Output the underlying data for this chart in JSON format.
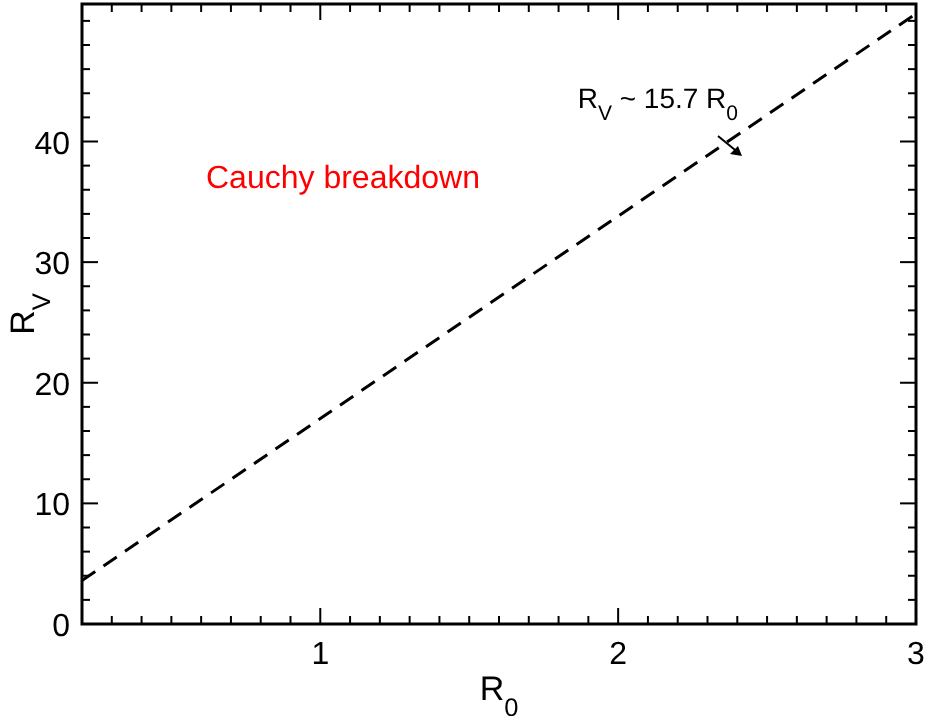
{
  "chart_data": {
    "type": "line",
    "xlabel": "R$_{0}$",
    "ylabel": "R$_{V}$",
    "x": [
      0.2,
      3
    ],
    "series": [
      {
        "color": "#000000",
        "values": [
          3.6,
          50.6
        ],
        "line_style": "dashed"
      }
    ],
    "xlim": [
      0.2,
      3
    ],
    "ylim": [
      0,
      51.4
    ],
    "xticks": [
      {
        "value": 0.3,
        "label": null
      },
      {
        "value": 0.4,
        "label": null
      },
      {
        "value": 0.5,
        "label": null
      },
      {
        "value": 0.6,
        "label": null
      },
      {
        "value": 0.7,
        "label": null
      },
      {
        "value": 0.8,
        "label": null
      },
      {
        "value": 0.9,
        "label": null
      },
      1,
      {
        "value": 1.1,
        "label": null
      },
      {
        "value": 1.2,
        "label": null
      },
      {
        "value": 1.3,
        "label": null
      },
      {
        "value": 1.4,
        "label": null
      },
      {
        "value": 1.5,
        "label": null
      },
      {
        "value": 1.6,
        "label": null
      },
      {
        "value": 1.7,
        "label": null
      },
      {
        "value": 1.8,
        "label": null
      },
      {
        "value": 1.9,
        "label": null
      },
      2,
      {
        "value": 2.1,
        "label": null
      },
      {
        "value": 2.2,
        "label": null
      },
      {
        "value": 2.3,
        "label": null
      },
      {
        "value": 2.4,
        "label": null
      },
      {
        "value": 2.5,
        "label": null
      },
      {
        "value": 2.6,
        "label": null
      },
      {
        "value": 2.7,
        "label": null
      },
      {
        "value": 2.8,
        "label": null
      },
      {
        "value": 2.9,
        "label": null
      },
      3
    ],
    "yticks": [
      0,
      {
        "value": 2,
        "label": null
      },
      {
        "value": 4,
        "label": null
      },
      {
        "value": 6,
        "label": null
      },
      {
        "value": 8,
        "label": null
      },
      10,
      {
        "value": 12,
        "label": null
      },
      {
        "value": 14,
        "label": null
      },
      {
        "value": 16,
        "label": null
      },
      {
        "value": 18,
        "label": null
      },
      20,
      {
        "value": 22,
        "label": null
      },
      {
        "value": 24,
        "label": null
      },
      {
        "value": 26,
        "label": null
      },
      {
        "value": 28,
        "label": null
      },
      30,
      {
        "value": 32,
        "label": null
      },
      {
        "value": 34,
        "label": null
      },
      {
        "value": 36,
        "label": null
      },
      {
        "value": 38,
        "label": null
      },
      40,
      {
        "value": 42,
        "label": null
      },
      {
        "value": 44,
        "label": null
      },
      {
        "value": 46,
        "label": null
      },
      {
        "value": 48,
        "label": null
      },
      {
        "value": 50,
        "label": null
      }
    ],
    "marker": "none",
    "annotations": [
      "R$_{V}$ ~ 15.7 R$_{0}$",
      "Cauchy breakdown"
    ]
  }
}
